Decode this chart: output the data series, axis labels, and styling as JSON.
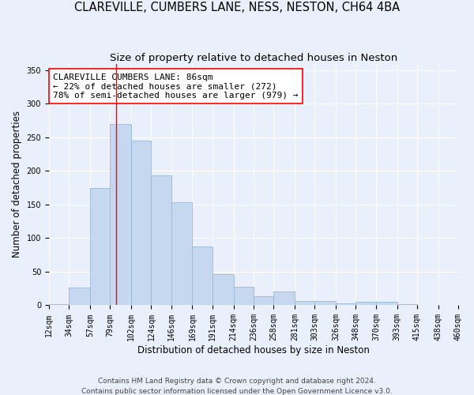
{
  "title": "CLAREVILLE, CUMBERS LANE, NESS, NESTON, CH64 4BA",
  "subtitle": "Size of property relative to detached houses in Neston",
  "xlabel": "Distribution of detached houses by size in Neston",
  "ylabel": "Number of detached properties",
  "footer1": "Contains HM Land Registry data © Crown copyright and database right 2024.",
  "footer2": "Contains public sector information licensed under the Open Government Licence v3.0.",
  "annotation_line1": "CLAREVILLE CUMBERS LANE: 86sqm",
  "annotation_line2": "← 22% of detached houses are smaller (272)",
  "annotation_line3": "78% of semi-detached houses are larger (979) →",
  "bar_color": "#c5d8f0",
  "bar_edge_color": "#9ab8d8",
  "red_line_x": 86,
  "bin_edges": [
    12,
    34,
    57,
    79,
    102,
    124,
    146,
    169,
    191,
    214,
    236,
    258,
    281,
    303,
    326,
    348,
    370,
    393,
    415,
    438,
    460
  ],
  "bar_heights": [
    2,
    26,
    175,
    270,
    245,
    193,
    153,
    88,
    47,
    28,
    14,
    21,
    7,
    7,
    3,
    5,
    5,
    2,
    1,
    1
  ],
  "tick_labels": [
    "12sqm",
    "34sqm",
    "57sqm",
    "79sqm",
    "102sqm",
    "124sqm",
    "146sqm",
    "169sqm",
    "191sqm",
    "214sqm",
    "236sqm",
    "258sqm",
    "281sqm",
    "303sqm",
    "326sqm",
    "348sqm",
    "370sqm",
    "393sqm",
    "415sqm",
    "438sqm",
    "460sqm"
  ],
  "ylim": [
    0,
    360
  ],
  "yticks": [
    0,
    50,
    100,
    150,
    200,
    250,
    300,
    350
  ],
  "background_color": "#eaf0fb",
  "grid_color": "#ffffff",
  "title_fontsize": 10.5,
  "subtitle_fontsize": 9.5,
  "axis_label_fontsize": 8.5,
  "tick_fontsize": 7,
  "annotation_fontsize": 8,
  "footer_fontsize": 6.5
}
